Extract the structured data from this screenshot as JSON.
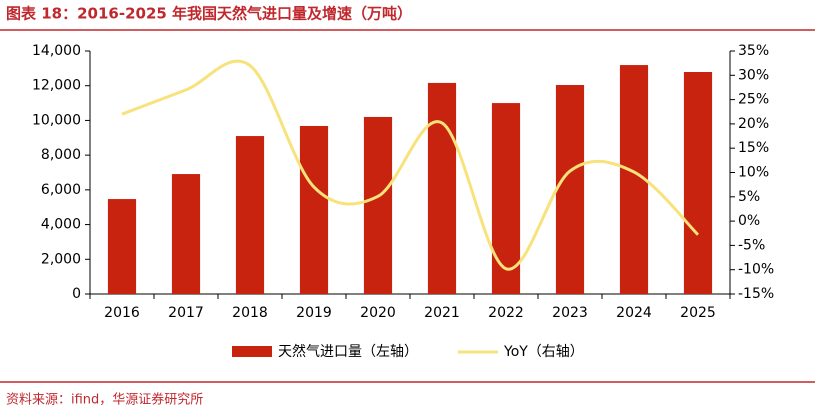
{
  "chart_data": {
    "type": "bar_line",
    "title": "图表 18：2016-2025 年我国天然气进口量及增速（万吨）",
    "source": "资料来源：ifind，华源证券研究所",
    "categories": [
      "2016",
      "2017",
      "2018",
      "2019",
      "2020",
      "2021",
      "2022",
      "2023",
      "2024",
      "2025"
    ],
    "series": [
      {
        "name": "天然气进口量（左轴）",
        "type": "bar",
        "color": "#c8230f",
        "values": [
          5470,
          6910,
          9100,
          9680,
          10200,
          12160,
          11000,
          12040,
          13190,
          12790
        ]
      },
      {
        "name": "YoY（右轴）",
        "type": "line",
        "axis": "y2",
        "color": "#f7e27c",
        "values": [
          22.0,
          27.0,
          32.0,
          7.0,
          5.1,
          20.2,
          -9.8,
          10.3,
          10.1,
          -2.8
        ]
      }
    ],
    "ylim": [
      0,
      14000
    ],
    "yticks": [
      0,
      {
        "value": 2000,
        "label": "2,000"
      },
      {
        "value": 4000,
        "label": "4,000"
      },
      {
        "value": 6000,
        "label": "6,000"
      },
      {
        "value": 8000,
        "label": "8,000"
      },
      {
        "value": 10000,
        "label": "10,000"
      },
      {
        "value": 12000,
        "label": "12,000"
      },
      {
        "value": 14000,
        "label": "14,000"
      }
    ],
    "y2lim": [
      -15,
      35
    ],
    "y2ticks": [
      {
        "value": -15,
        "label": "-15%"
      },
      {
        "value": -10,
        "label": "-10%"
      },
      {
        "value": -5,
        "label": "-5%"
      },
      {
        "value": 0,
        "label": "0%"
      },
      {
        "value": 5,
        "label": "5%"
      },
      {
        "value": 10,
        "label": "10%"
      },
      {
        "value": 15,
        "label": "15%"
      },
      {
        "value": 20,
        "label": "20%"
      },
      {
        "value": 25,
        "label": "25%"
      },
      {
        "value": 30,
        "label": "30%"
      },
      {
        "value": 35,
        "label": "35%"
      }
    ],
    "grid": false,
    "legend": "bottom"
  }
}
